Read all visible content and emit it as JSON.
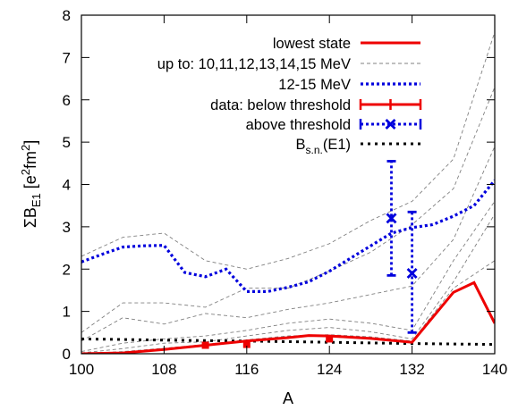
{
  "chart_data": {
    "type": "line",
    "xlabel": "A",
    "ylabel": {
      "base": "ΣB",
      "sub": "E1",
      "unit_open": " [e",
      "sup1": "2",
      "unit_mid": "fm",
      "sup2": "2",
      "unit_close": "]"
    },
    "xlim": [
      100,
      140
    ],
    "ylim": [
      0,
      8
    ],
    "xticks": [
      100,
      108,
      116,
      124,
      132,
      140
    ],
    "yticks": [
      0,
      1,
      2,
      3,
      4,
      5,
      6,
      7,
      8
    ],
    "grid": false,
    "legend_position": "top-right",
    "legend": {
      "lowest_state": "lowest state",
      "up_to": "up to: 10,11,12,13,14,15 MeV",
      "mev_12_15": "12-15 MeV",
      "data_below": "data: below threshold",
      "data_above": "above threshold",
      "bsn": {
        "base": "B",
        "sub": "s.n.",
        "tail": "(E1)"
      }
    },
    "colors": {
      "lowest_state": "#ee0000",
      "up_to": "#808080",
      "mev_12_15": "#0000dd",
      "data_below": "#ee0000",
      "data_above": "#0000dd",
      "bsn": "#000000"
    },
    "series": [
      {
        "name": "lowest state",
        "style": "solid",
        "x": [
          100,
          104,
          108,
          112,
          116,
          120,
          122,
          124,
          128,
          132,
          136,
          138,
          140
        ],
        "y": [
          0,
          0.02,
          0.1,
          0.2,
          0.3,
          0.38,
          0.43,
          0.42,
          0.36,
          0.27,
          1.45,
          1.68,
          0.72
        ]
      },
      {
        "name": "12-15 MeV",
        "style": "dotted",
        "x": [
          100,
          102,
          104,
          106,
          108,
          110,
          112,
          114,
          116,
          118,
          120,
          122,
          124,
          126,
          128,
          130,
          132,
          134,
          136,
          138,
          140
        ],
        "y": [
          2.17,
          2.35,
          2.52,
          2.55,
          2.56,
          1.92,
          1.82,
          2.0,
          1.47,
          1.47,
          1.57,
          1.7,
          1.95,
          2.25,
          2.55,
          2.85,
          2.98,
          3.05,
          3.25,
          3.5,
          4.1
        ]
      },
      {
        "name": "up to: 10,11,12,13,14,15 MeV",
        "style": "dashed",
        "curves": [
          {
            "x": [
              100,
              104,
              108,
              112,
              116,
              120,
              124,
              128,
              132,
              136,
              140
            ],
            "y": [
              0,
              0.05,
              0.13,
              0.22,
              0.33,
              0.42,
              0.45,
              0.4,
              0.3,
              1.55,
              2.2
            ]
          },
          {
            "x": [
              100,
              104,
              108,
              112,
              116,
              120,
              124,
              128,
              132,
              136,
              140
            ],
            "y": [
              0.02,
              0.12,
              0.25,
              0.28,
              0.42,
              0.55,
              0.62,
              0.52,
              0.35,
              1.7,
              3.3
            ]
          },
          {
            "x": [
              100,
              104,
              108,
              112,
              116,
              120,
              124,
              128,
              132,
              136,
              140
            ],
            "y": [
              0.05,
              0.25,
              0.35,
              0.42,
              0.55,
              0.72,
              0.82,
              0.72,
              0.55,
              2.2,
              3.6
            ]
          },
          {
            "x": [
              100,
              104,
              108,
              112,
              116,
              120,
              124,
              128,
              132,
              136,
              140
            ],
            "y": [
              0.3,
              0.85,
              0.7,
              0.95,
              0.85,
              1.05,
              1.2,
              1.4,
              1.6,
              2.7,
              4.9
            ]
          },
          {
            "x": [
              100,
              104,
              108,
              112,
              116,
              120,
              124,
              128,
              132,
              136,
              140
            ],
            "y": [
              0.5,
              1.2,
              1.2,
              1.1,
              1.55,
              1.55,
              1.95,
              2.4,
              3.05,
              3.9,
              6.3
            ]
          },
          {
            "x": [
              100,
              104,
              108,
              112,
              116,
              120,
              124,
              128,
              132,
              136,
              140
            ],
            "y": [
              2.3,
              2.75,
              2.85,
              2.2,
              2.0,
              2.25,
              2.6,
              3.15,
              3.6,
              4.6,
              7.6
            ]
          }
        ]
      },
      {
        "name": "data: below threshold",
        "points": [
          {
            "x": 112,
            "y": 0.2
          },
          {
            "x": 116,
            "y": 0.22
          },
          {
            "x": 124,
            "y": 0.35
          }
        ]
      },
      {
        "name": "above threshold",
        "points": [
          {
            "x": 130,
            "y": 3.2,
            "ylo": 1.85,
            "yhi": 4.55
          },
          {
            "x": 132,
            "y": 1.9,
            "ylo": 0.5,
            "yhi": 3.35
          }
        ]
      },
      {
        "name": "B_s.n.(E1)",
        "style": "dotted",
        "x": [
          100,
          108,
          116,
          124,
          132,
          140
        ],
        "y": [
          0.35,
          0.32,
          0.3,
          0.27,
          0.24,
          0.22
        ]
      }
    ]
  }
}
